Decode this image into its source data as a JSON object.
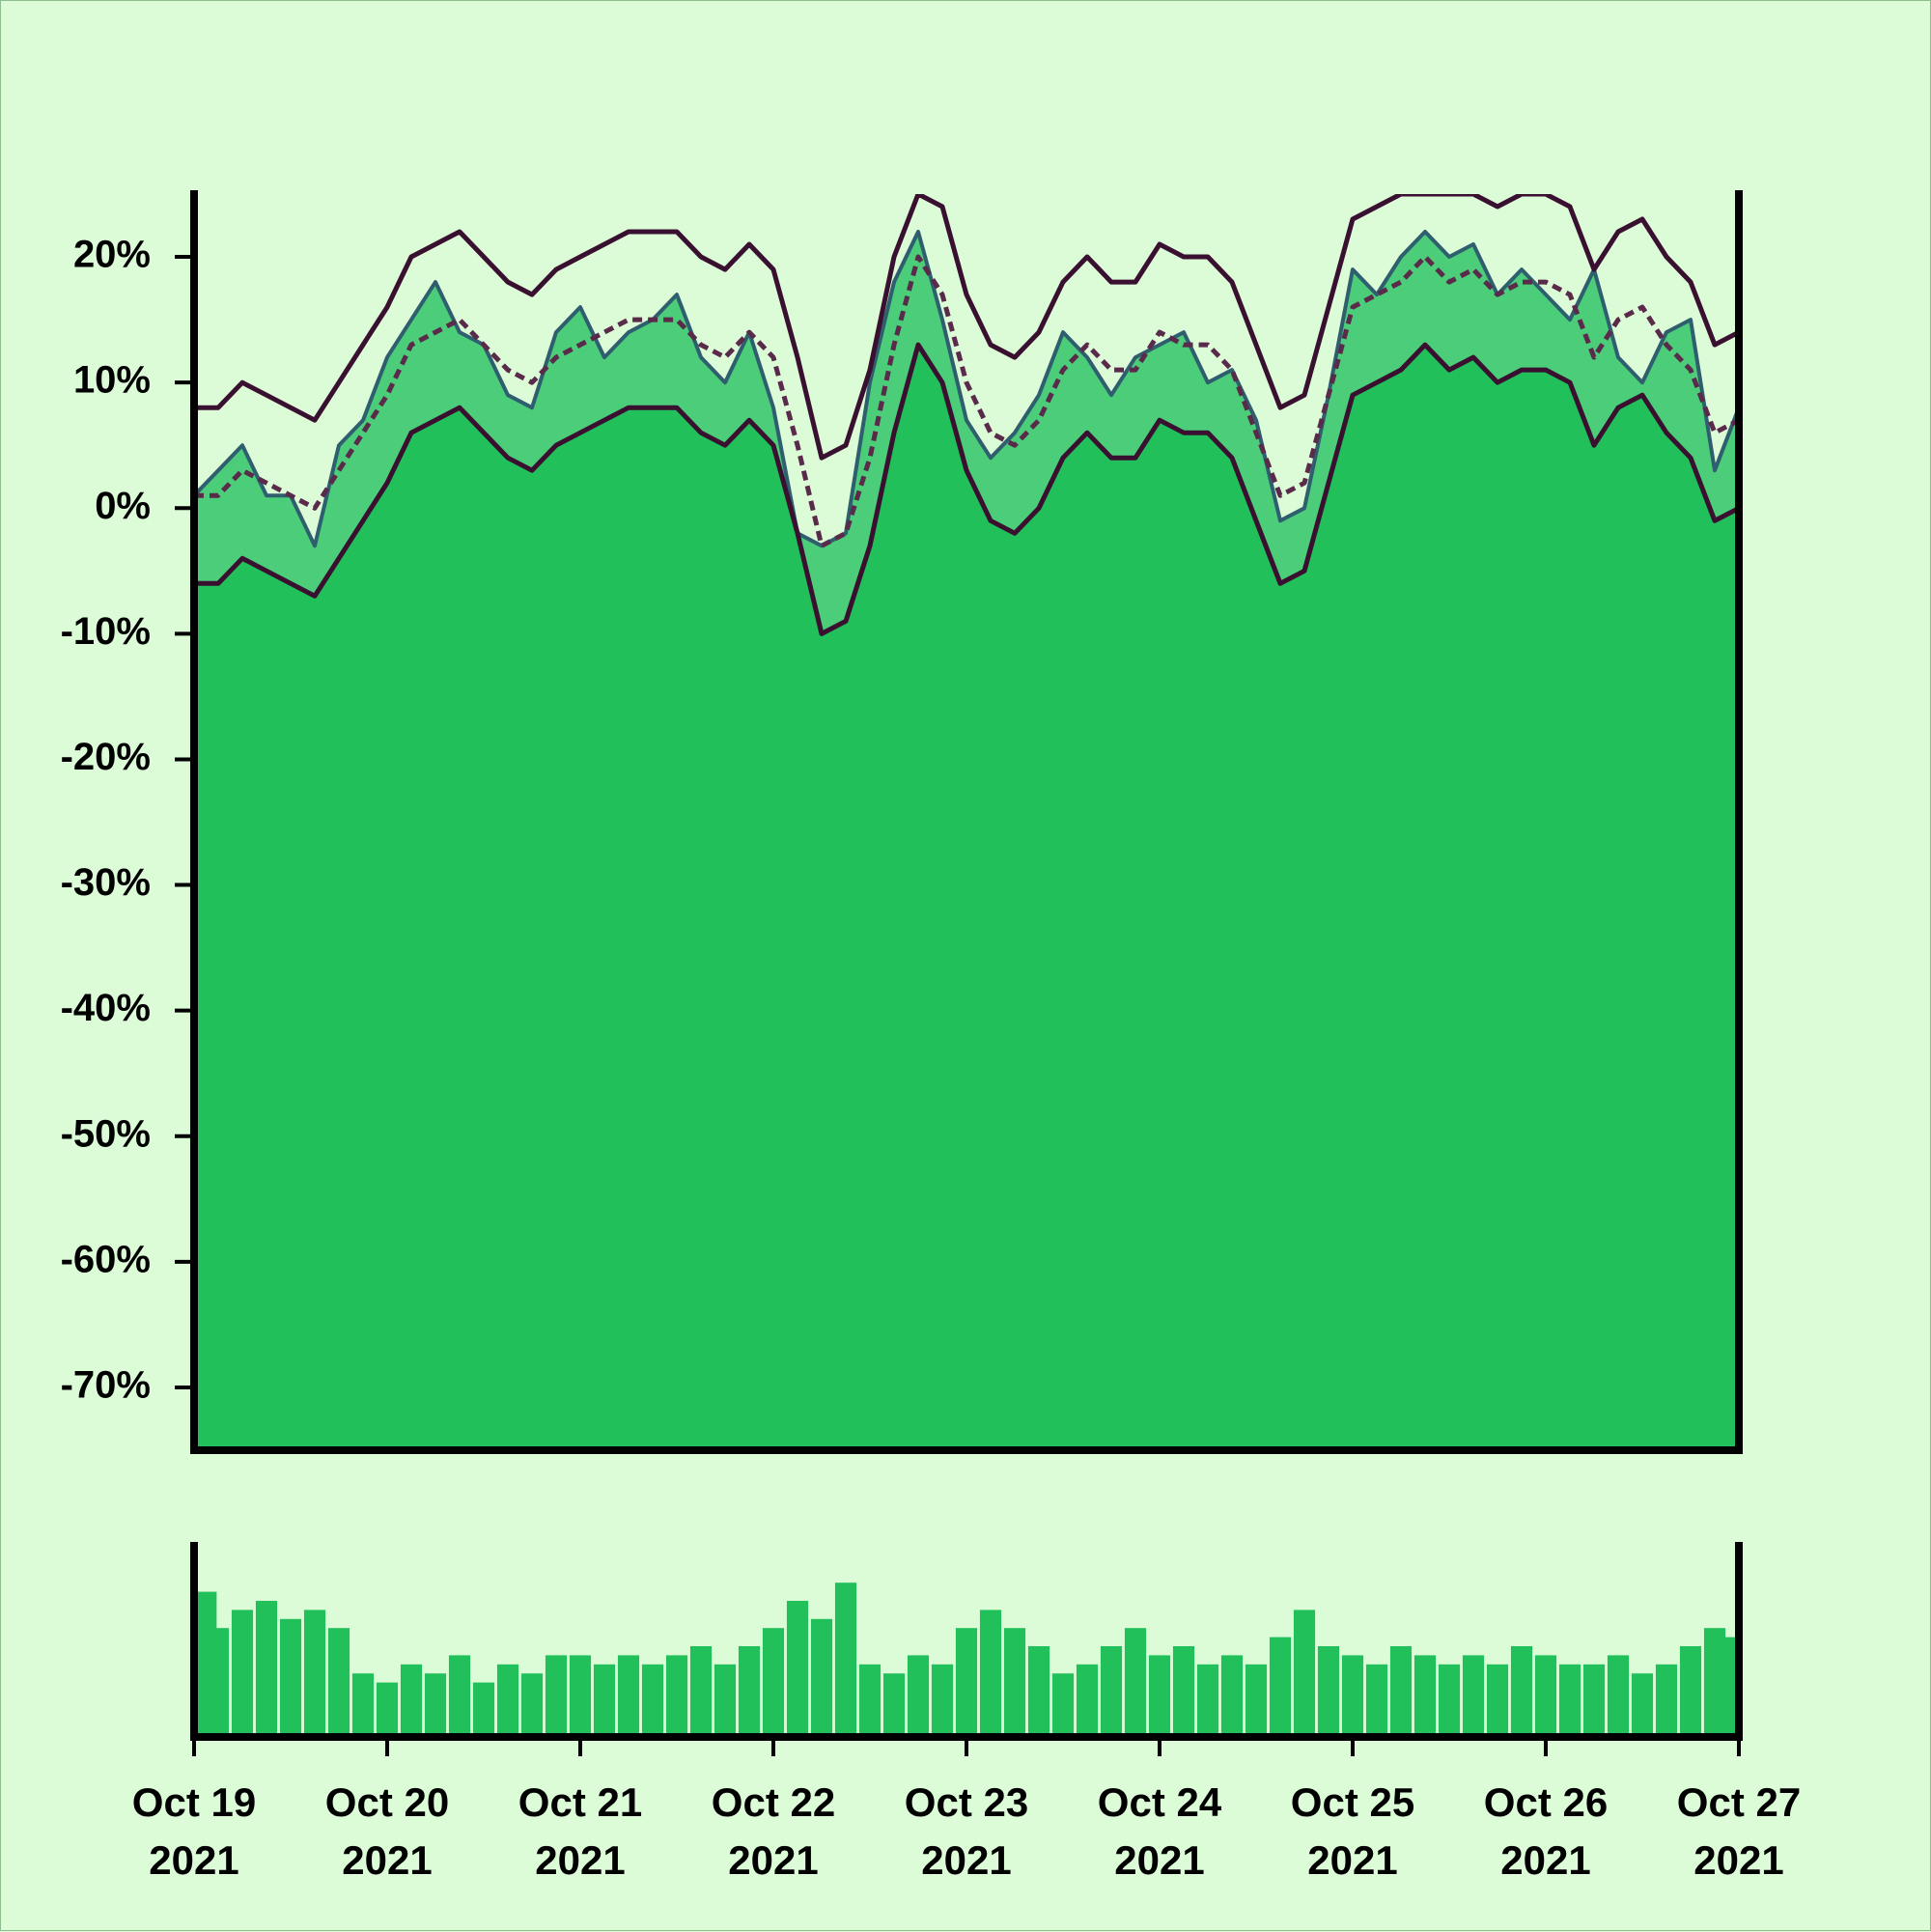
{
  "chart_data": [
    {
      "type": "area",
      "x": [
        0,
        0.125,
        0.25,
        0.375,
        0.5,
        0.625,
        0.75,
        0.875,
        1,
        1.125,
        1.25,
        1.375,
        1.5,
        1.625,
        1.75,
        1.875,
        2,
        2.125,
        2.25,
        2.375,
        2.5,
        2.625,
        2.75,
        2.875,
        3,
        3.125,
        3.25,
        3.375,
        3.5,
        3.625,
        3.75,
        3.875,
        4,
        4.125,
        4.25,
        4.375,
        4.5,
        4.625,
        4.75,
        4.875,
        5,
        5.125,
        5.25,
        5.375,
        5.5,
        5.625,
        5.75,
        5.875,
        6,
        6.125,
        6.25,
        6.375,
        6.5,
        6.625,
        6.75,
        6.875,
        7,
        7.125,
        7.25,
        7.375,
        7.5,
        7.625,
        7.75,
        7.875,
        8
      ],
      "xlim": [
        0,
        8
      ],
      "ylim": [
        -75,
        25
      ],
      "yticks": [
        {
          "value": -70,
          "label": "-70%"
        },
        {
          "value": -60,
          "label": "-60%"
        },
        {
          "value": -50,
          "label": "-50%"
        },
        {
          "value": -40,
          "label": "-40%"
        },
        {
          "value": -30,
          "label": "-30%"
        },
        {
          "value": -20,
          "label": "-20%"
        },
        {
          "value": -10,
          "label": "-10%"
        },
        {
          "value": 0,
          "label": "0%"
        },
        {
          "value": 10,
          "label": "10%"
        },
        {
          "value": 20,
          "label": "20%"
        }
      ],
      "series": [
        {
          "color": "#2f5e6e",
          "fill": "#4ccd7a",
          "values": [
            1,
            3,
            5,
            1,
            1,
            -3,
            5,
            7,
            12,
            15,
            18,
            14,
            13,
            9,
            8,
            14,
            16,
            12,
            14,
            15,
            17,
            12,
            10,
            14,
            8,
            -2,
            -3,
            -2,
            10,
            18,
            22,
            15,
            7,
            4,
            6,
            9,
            14,
            12,
            9,
            12,
            13,
            14,
            10,
            11,
            7,
            -1,
            0,
            9,
            19,
            17,
            20,
            22,
            20,
            21,
            17,
            19,
            17,
            15,
            19,
            12,
            10,
            14,
            15,
            3,
            8
          ]
        },
        {
          "color": "#3a1030",
          "values": [
            8,
            8,
            10,
            9,
            8,
            7,
            10,
            13,
            16,
            20,
            21,
            22,
            20,
            18,
            17,
            19,
            20,
            21,
            22,
            22,
            22,
            20,
            19,
            21,
            19,
            12,
            4,
            5,
            11,
            20,
            25,
            24,
            17,
            13,
            12,
            14,
            18,
            20,
            18,
            18,
            21,
            20,
            20,
            18,
            13,
            8,
            9,
            16,
            23,
            24,
            25,
            25,
            25,
            25,
            24,
            25,
            25,
            24,
            19,
            22,
            23,
            20,
            18,
            13,
            14
          ]
        },
        {
          "color": "#5a2a4a",
          "dashed": true,
          "values": [
            1,
            1,
            3,
            2,
            1,
            0,
            3,
            6,
            9,
            13,
            14,
            15,
            13,
            11,
            10,
            12,
            13,
            14,
            15,
            15,
            15,
            13,
            12,
            14,
            12,
            5,
            -3,
            -2,
            4,
            13,
            20,
            17,
            10,
            6,
            5,
            7,
            11,
            13,
            11,
            11,
            14,
            13,
            13,
            11,
            6,
            1,
            2,
            9,
            16,
            17,
            18,
            20,
            18,
            19,
            17,
            18,
            18,
            17,
            12,
            15,
            16,
            13,
            11,
            6,
            7
          ]
        },
        {
          "color": "#3a1030",
          "fill": "#22c05a",
          "values": [
            -6,
            -6,
            -4,
            -5,
            -6,
            -7,
            -4,
            -1,
            2,
            6,
            7,
            8,
            6,
            4,
            3,
            5,
            6,
            7,
            8,
            8,
            8,
            6,
            5,
            7,
            5,
            -2,
            -10,
            -9,
            -3,
            6,
            13,
            10,
            3,
            -1,
            -2,
            0,
            4,
            6,
            4,
            4,
            7,
            6,
            6,
            4,
            -1,
            -6,
            -5,
            2,
            9,
            10,
            11,
            13,
            11,
            12,
            10,
            11,
            11,
            10,
            5,
            8,
            9,
            6,
            4,
            -1,
            0
          ]
        }
      ]
    },
    {
      "type": "bar",
      "color": "#22c05a",
      "x": [
        0,
        0.125,
        0.25,
        0.375,
        0.5,
        0.625,
        0.75,
        0.875,
        1,
        1.125,
        1.25,
        1.375,
        1.5,
        1.625,
        1.75,
        1.875,
        2,
        2.125,
        2.25,
        2.375,
        2.5,
        2.625,
        2.75,
        2.875,
        3,
        3.125,
        3.25,
        3.375,
        3.5,
        3.625,
        3.75,
        3.875,
        4,
        4.125,
        4.25,
        4.375,
        4.5,
        4.625,
        4.75,
        4.875,
        5,
        5.125,
        5.25,
        5.375,
        5.5,
        5.625,
        5.75,
        5.875,
        6,
        6.125,
        6.25,
        6.375,
        6.5,
        6.625,
        6.75,
        6.875,
        7,
        7.125,
        7.25,
        7.375,
        7.5,
        7.625,
        7.75,
        7.875,
        8
      ],
      "values": [
        80,
        60,
        70,
        75,
        65,
        70,
        60,
        35,
        30,
        40,
        35,
        45,
        30,
        40,
        35,
        45,
        45,
        40,
        45,
        40,
        45,
        50,
        40,
        50,
        60,
        75,
        65,
        85,
        40,
        35,
        45,
        40,
        60,
        70,
        60,
        50,
        35,
        40,
        50,
        60,
        45,
        50,
        40,
        45,
        40,
        55,
        70,
        50,
        45,
        40,
        50,
        45,
        40,
        45,
        40,
        50,
        45,
        40,
        40,
        45,
        35,
        40,
        50,
        60,
        55
      ],
      "xlim": [
        0,
        8
      ],
      "ylim": [
        0,
        100
      ],
      "xticks": [
        {
          "value": 0,
          "label": "Oct 19 2021"
        },
        {
          "value": 1,
          "label": "Oct 20 2021"
        },
        {
          "value": 2,
          "label": "Oct 21 2021"
        },
        {
          "value": 3,
          "label": "Oct 22 2021"
        },
        {
          "value": 4,
          "label": "Oct 23 2021"
        },
        {
          "value": 5,
          "label": "Oct 24 2021"
        },
        {
          "value": 6,
          "label": "Oct 25 2021"
        },
        {
          "value": 7,
          "label": "Oct 26 2021"
        },
        {
          "value": 8,
          "label": "Oct 27 2021"
        }
      ]
    }
  ]
}
